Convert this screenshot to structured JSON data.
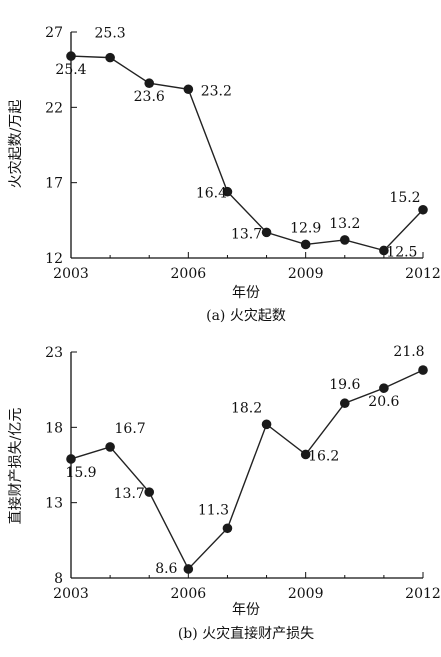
{
  "chart_data": [
    {
      "type": "line",
      "title": "",
      "caption": "(a) 火灾起数",
      "xlabel": "年份",
      "ylabel": "火灾起数/万起",
      "x": [
        2003,
        2004,
        2005,
        2006,
        2007,
        2008,
        2009,
        2010,
        2011,
        2012
      ],
      "series": [
        {
          "values": [
            25.4,
            25.3,
            23.6,
            23.2,
            16.4,
            13.7,
            12.9,
            13.2,
            12.5,
            15.2
          ]
        }
      ],
      "data_labels": [
        "25.4",
        "25.3",
        "23.6",
        "23.2",
        "16.4",
        "13.7",
        "12.9",
        "13.2",
        "12.5",
        "15.2"
      ],
      "xticks": [
        "2003",
        "2006",
        "2009",
        "2012"
      ],
      "yticks": [
        "27",
        "22",
        "17",
        "12"
      ],
      "xlim": [
        2003,
        2012
      ],
      "ylim": [
        12,
        27
      ],
      "grid": false,
      "legend": "none",
      "colors": {
        "line": "#222222",
        "marker": "#1a1a1a",
        "axis": "#111111"
      }
    },
    {
      "type": "line",
      "title": "",
      "caption": "(b) 火灾直接财产损失",
      "xlabel": "年份",
      "ylabel": "直接财产损失/亿元",
      "x": [
        2003,
        2004,
        2005,
        2006,
        2007,
        2008,
        2009,
        2010,
        2011,
        2012
      ],
      "series": [
        {
          "values": [
            15.9,
            16.7,
            13.7,
            8.6,
            11.3,
            18.2,
            16.2,
            19.6,
            20.6,
            21.8
          ]
        }
      ],
      "data_labels": [
        "15.9",
        "16.7",
        "13.7",
        "8.6",
        "11.3",
        "18.2",
        "16.2",
        "19.6",
        "20.6",
        "21.8"
      ],
      "xticks": [
        "2003",
        "2006",
        "2009",
        "2012"
      ],
      "yticks": [
        "23",
        "18",
        "13",
        "8"
      ],
      "xlim": [
        2003,
        2012
      ],
      "ylim": [
        8,
        23
      ],
      "grid": false,
      "legend": "none",
      "colors": {
        "line": "#222222",
        "marker": "#1a1a1a",
        "axis": "#111111"
      }
    }
  ]
}
